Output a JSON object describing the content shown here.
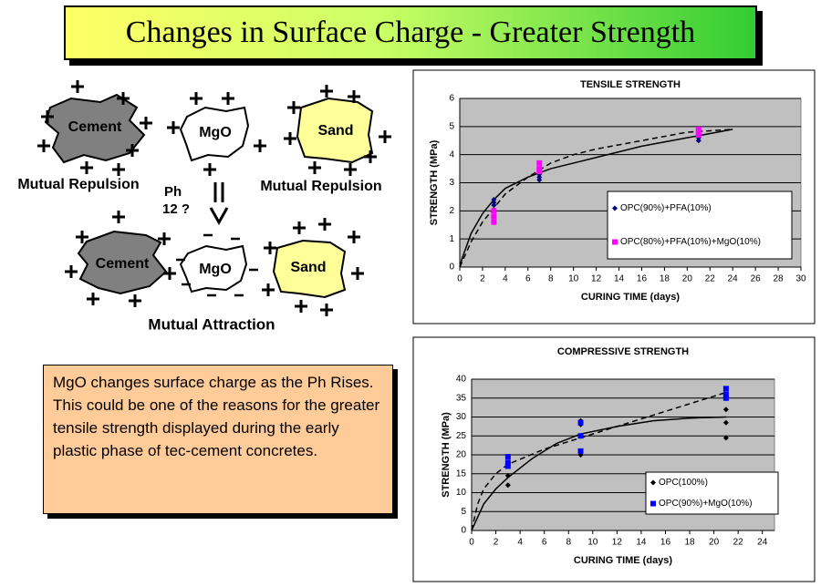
{
  "title": "Changes in Surface Charge - Greater Strength",
  "diagram": {
    "top_labels": [
      "Cement",
      "MgO",
      "Sand"
    ],
    "bottom_labels": [
      "Cement",
      "MgO",
      "Sand"
    ],
    "repulsion_left": "Mutual Repulsion",
    "repulsion_right": "Mutual Repulsion",
    "ph": "Ph",
    "ph_value": "12 ?",
    "attraction": "Mutual Attraction"
  },
  "note": "MgO changes surface charge as the Ph Rises. This could be one of the reasons for the greater tensile strength displayed during the early plastic phase of tec-cement concretes.",
  "chart_data": [
    {
      "type": "scatter",
      "title": "TENSILE STRENGTH",
      "x_label": "CURING TIME (days)",
      "y_label": "STRENGTH (MPa)",
      "xlim": [
        0,
        30
      ],
      "xticks": [
        0,
        2,
        4,
        6,
        8,
        10,
        12,
        14,
        16,
        18,
        20,
        22,
        24,
        26,
        28,
        30
      ],
      "ylim": [
        0,
        6
      ],
      "yticks": [
        0,
        1,
        2,
        3,
        4,
        5,
        6
      ],
      "grid": true,
      "series": [
        {
          "name": "OPC(90%)+PFA(10%)",
          "color": "#000080",
          "marker": "diamond",
          "x": [
            3,
            3,
            3,
            7,
            7,
            7,
            21,
            21,
            21
          ],
          "values": [
            2.4,
            2.3,
            2.2,
            3.3,
            3.2,
            3.1,
            4.7,
            4.6,
            4.5
          ]
        },
        {
          "name": "OPC(80%)+PFA(10%)+MgO(10%)",
          "color": "#ff00ff",
          "marker": "square",
          "x": [
            3,
            3,
            3,
            7,
            7,
            7,
            21,
            21,
            21
          ],
          "values": [
            2.0,
            1.8,
            1.6,
            3.7,
            3.5,
            3.4,
            4.9,
            4.8,
            4.7
          ]
        }
      ],
      "trendlines": [
        {
          "style": "solid",
          "x": [
            0,
            0.2,
            1,
            2,
            3,
            4,
            6,
            8,
            10,
            12,
            16,
            20,
            24
          ],
          "values": [
            0,
            0.3,
            1.2,
            1.9,
            2.4,
            2.8,
            3.2,
            3.5,
            3.7,
            3.9,
            4.3,
            4.6,
            4.9
          ]
        },
        {
          "style": "dashed",
          "x": [
            0,
            1,
            2,
            3,
            4,
            6,
            8,
            10,
            12,
            16,
            20,
            24
          ],
          "values": [
            0,
            0.9,
            1.6,
            2.1,
            2.6,
            3.2,
            3.7,
            4.0,
            4.2,
            4.5,
            4.8,
            4.9
          ]
        }
      ]
    },
    {
      "type": "scatter",
      "title": "COMPRESSIVE STRENGTH",
      "x_label": "CURING TIME (days)",
      "y_label": "STRENGTH (MPa)",
      "xlim": [
        0,
        25
      ],
      "xticks": [
        0,
        2,
        4,
        6,
        8,
        10,
        12,
        14,
        16,
        18,
        20,
        22,
        24
      ],
      "ylim": [
        0,
        40
      ],
      "yticks": [
        0,
        5,
        10,
        15,
        20,
        25,
        30,
        35,
        40
      ],
      "grid": true,
      "series": [
        {
          "name": "OPC(100%)",
          "color": "#000000",
          "marker": "diamond",
          "x": [
            3,
            3,
            3,
            9,
            9,
            9,
            21,
            21,
            21
          ],
          "values": [
            17,
            14.5,
            12,
            29,
            28,
            20,
            32,
            28.5,
            24.5
          ]
        },
        {
          "name": "OPC(90%)+MgO(10%)",
          "color": "#0000ff",
          "marker": "square",
          "x": [
            3,
            3,
            3,
            9,
            9,
            9,
            21,
            21,
            21
          ],
          "values": [
            19.5,
            18,
            17,
            28.5,
            25,
            21,
            37.5,
            36,
            35
          ]
        }
      ],
      "trendlines": [
        {
          "style": "solid",
          "x": [
            0,
            1,
            2,
            3,
            5,
            7,
            9,
            12,
            15,
            18,
            21
          ],
          "values": [
            0,
            7,
            11,
            14,
            19,
            23,
            25.5,
            27.5,
            29,
            29.7,
            30
          ]
        },
        {
          "style": "dashed",
          "x": [
            0,
            0.5,
            1,
            2,
            3,
            6,
            9,
            12,
            15,
            18,
            21
          ],
          "values": [
            0,
            7,
            11,
            15,
            17.5,
            21.5,
            24.5,
            27.5,
            30.5,
            33.5,
            36.5
          ]
        }
      ]
    }
  ]
}
